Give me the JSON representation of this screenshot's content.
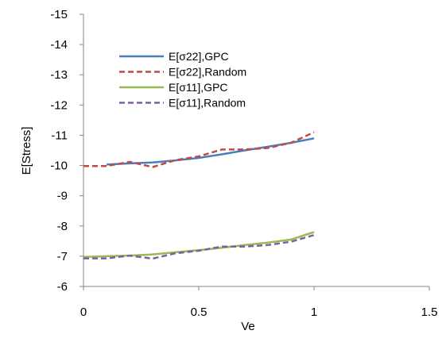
{
  "chart_data": {
    "type": "line",
    "xlabel": "Ve",
    "ylabel": "E[Stress]",
    "xlim": [
      0,
      1.5
    ],
    "ylim": [
      -6,
      -15
    ],
    "y_axis_reversed": true,
    "x_ticks": [
      "0",
      "0.5",
      "1",
      "1.5"
    ],
    "y_ticks": [
      "-15",
      "-14",
      "-13",
      "-12",
      "-11",
      "-10",
      "-9",
      "-8",
      "-7",
      "-6"
    ],
    "grid": false,
    "legend_position": "top-left",
    "series": [
      {
        "name": "E[σ22],GPC",
        "color": "#4a7ebb",
        "dash": "solid",
        "x": [
          0.1,
          0.2,
          0.3,
          0.4,
          0.5,
          0.6,
          0.7,
          0.8,
          0.9,
          1.0
        ],
        "y": [
          -10.03,
          -10.07,
          -10.1,
          -10.17,
          -10.25,
          -10.37,
          -10.5,
          -10.62,
          -10.75,
          -10.9
        ]
      },
      {
        "name": "E[σ22],Random",
        "color": "#be4b48",
        "dash": "dashed",
        "x": [
          0.0,
          0.1,
          0.2,
          0.3,
          0.4,
          0.5,
          0.6,
          0.7,
          0.8,
          0.9,
          1.0
        ],
        "y": [
          -9.98,
          -9.98,
          -10.12,
          -9.95,
          -10.18,
          -10.3,
          -10.53,
          -10.53,
          -10.58,
          -10.75,
          -11.1
        ]
      },
      {
        "name": "E[σ11],GPC",
        "color": "#98b954",
        "dash": "solid",
        "x": [
          0.0,
          0.1,
          0.2,
          0.3,
          0.4,
          0.5,
          0.6,
          0.7,
          0.8,
          0.9,
          1.0
        ],
        "y": [
          -6.98,
          -7.0,
          -7.02,
          -7.06,
          -7.13,
          -7.2,
          -7.28,
          -7.37,
          -7.45,
          -7.55,
          -7.8
        ]
      },
      {
        "name": "E[σ11],Random",
        "color": "#7d60a0",
        "dash": "dashed",
        "x": [
          0.0,
          0.1,
          0.2,
          0.3,
          0.4,
          0.5,
          0.6,
          0.7,
          0.8,
          0.9,
          1.0
        ],
        "y": [
          -6.93,
          -6.93,
          -7.02,
          -6.92,
          -7.1,
          -7.18,
          -7.32,
          -7.32,
          -7.37,
          -7.48,
          -7.7
        ]
      }
    ]
  }
}
